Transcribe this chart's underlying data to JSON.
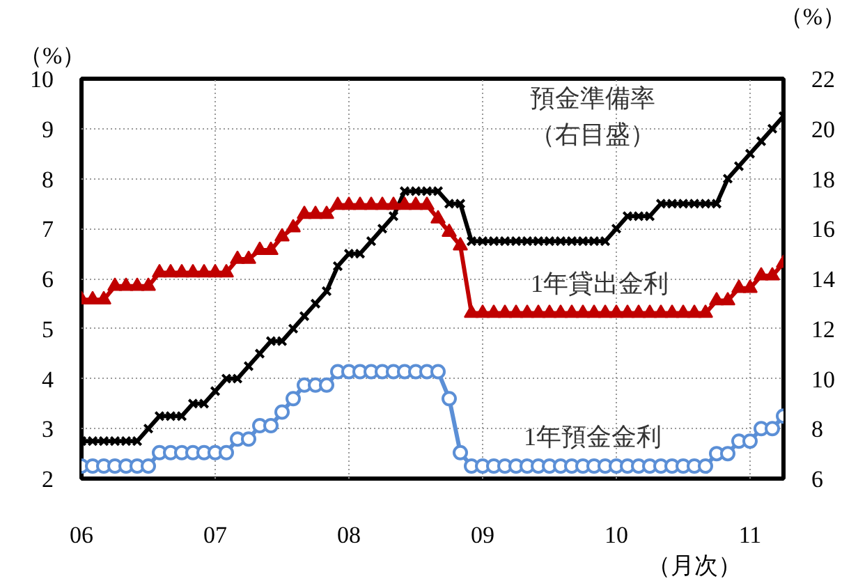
{
  "chart_data": {
    "type": "line",
    "xlabel": "（月次）",
    "ylabel": "（%）",
    "y2label": "（%）",
    "x": [
      "2006-01",
      "2006-02",
      "2006-03",
      "2006-04",
      "2006-05",
      "2006-06",
      "2006-07",
      "2006-08",
      "2006-09",
      "2006-10",
      "2006-11",
      "2006-12",
      "2007-01",
      "2007-02",
      "2007-03",
      "2007-04",
      "2007-05",
      "2007-06",
      "2007-07",
      "2007-08",
      "2007-09",
      "2007-10",
      "2007-11",
      "2007-12",
      "2008-01",
      "2008-02",
      "2008-03",
      "2008-04",
      "2008-05",
      "2008-06",
      "2008-07",
      "2008-08",
      "2008-09",
      "2008-10",
      "2008-11",
      "2008-12",
      "2009-01",
      "2009-02",
      "2009-03",
      "2009-04",
      "2009-05",
      "2009-06",
      "2009-07",
      "2009-08",
      "2009-09",
      "2009-10",
      "2009-11",
      "2009-12",
      "2010-01",
      "2010-02",
      "2010-03",
      "2010-04",
      "2010-05",
      "2010-06",
      "2010-07",
      "2010-08",
      "2010-09",
      "2010-10",
      "2010-11",
      "2010-12",
      "2011-01",
      "2011-02",
      "2011-03",
      "2011-04"
    ],
    "series": [
      {
        "name": "預金準備率（右目盛）",
        "color": "#000000",
        "axis": "y2",
        "marker": "cross",
        "values": [
          7.5,
          7.5,
          7.5,
          7.5,
          7.5,
          7.5,
          8.0,
          8.5,
          8.5,
          8.5,
          9.0,
          9.0,
          9.5,
          10,
          10,
          10.5,
          11,
          11.5,
          11.5,
          12,
          12.5,
          13,
          13.5,
          14.5,
          15,
          15,
          15.5,
          16,
          16.5,
          17.5,
          17.5,
          17.5,
          17.5,
          17,
          17,
          15.5,
          15.5,
          15.5,
          15.5,
          15.5,
          15.5,
          15.5,
          15.5,
          15.5,
          15.5,
          15.5,
          15.5,
          15.5,
          16,
          16.5,
          16.5,
          16.5,
          17,
          17,
          17,
          17,
          17,
          17,
          18,
          18.5,
          19,
          19.5,
          20,
          20.5
        ]
      },
      {
        "name": "1年貸出金利",
        "color": "#c00000",
        "marker": "triangle",
        "values": [
          5.58,
          5.58,
          5.58,
          5.85,
          5.85,
          5.85,
          5.85,
          6.12,
          6.12,
          6.12,
          6.12,
          6.12,
          6.12,
          6.12,
          6.39,
          6.39,
          6.57,
          6.57,
          6.84,
          7.02,
          7.29,
          7.29,
          7.29,
          7.47,
          7.47,
          7.47,
          7.47,
          7.47,
          7.47,
          7.47,
          7.47,
          7.47,
          7.2,
          6.93,
          6.66,
          5.31,
          5.31,
          5.31,
          5.31,
          5.31,
          5.31,
          5.31,
          5.31,
          5.31,
          5.31,
          5.31,
          5.31,
          5.31,
          5.31,
          5.31,
          5.31,
          5.31,
          5.31,
          5.31,
          5.31,
          5.31,
          5.31,
          5.56,
          5.56,
          5.81,
          5.81,
          6.06,
          6.06,
          6.31
        ]
      },
      {
        "name": "1年預金金利",
        "color": "#5b8fd6",
        "marker": "circle",
        "values": [
          2.25,
          2.25,
          2.25,
          2.25,
          2.25,
          2.25,
          2.25,
          2.52,
          2.52,
          2.52,
          2.52,
          2.52,
          2.52,
          2.52,
          2.79,
          2.79,
          3.06,
          3.06,
          3.33,
          3.6,
          3.87,
          3.87,
          3.87,
          4.14,
          4.14,
          4.14,
          4.14,
          4.14,
          4.14,
          4.14,
          4.14,
          4.14,
          4.14,
          3.6,
          2.52,
          2.25,
          2.25,
          2.25,
          2.25,
          2.25,
          2.25,
          2.25,
          2.25,
          2.25,
          2.25,
          2.25,
          2.25,
          2.25,
          2.25,
          2.25,
          2.25,
          2.25,
          2.25,
          2.25,
          2.25,
          2.25,
          2.25,
          2.5,
          2.5,
          2.75,
          2.75,
          3.0,
          3.0,
          3.25
        ]
      }
    ],
    "xlim": [
      "2006-01",
      "2011-04"
    ],
    "xticks": [
      {
        "value": "2006-01",
        "label": "06"
      },
      {
        "value": "2007-01",
        "label": "07"
      },
      {
        "value": "2008-01",
        "label": "08"
      },
      {
        "value": "2009-01",
        "label": "09"
      },
      {
        "value": "2010-01",
        "label": "10"
      },
      {
        "value": "2011-01",
        "label": "11"
      }
    ],
    "ylim": [
      2,
      10
    ],
    "yticks": [
      2,
      3,
      4,
      5,
      6,
      7,
      8,
      9,
      10
    ],
    "y2lim": [
      6,
      22
    ],
    "y2ticks": [
      6,
      8,
      10,
      12,
      14,
      16,
      18,
      20,
      22
    ],
    "grid": true
  }
}
